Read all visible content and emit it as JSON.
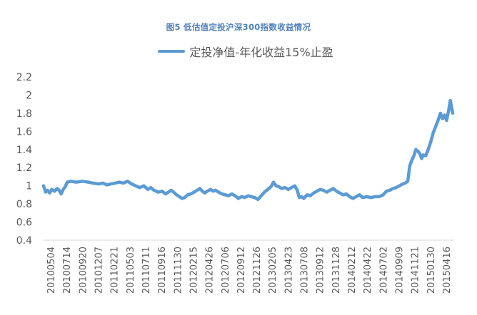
{
  "chart_data": {
    "type": "line",
    "title": "图5  低估值定投沪深300指数收益情况",
    "xlabel": "",
    "ylabel": "",
    "ylim": [
      0.4,
      2.2
    ],
    "yticks": [
      "2.2",
      "2",
      "1.8",
      "1.6",
      "1.4",
      "1.2",
      "1",
      "0.8",
      "0.6",
      "0.4"
    ],
    "grid": false,
    "legend_position": "top",
    "categories": [
      "20100504",
      "20100714",
      "20100920",
      "20101207",
      "20110221",
      "20110503",
      "20110711",
      "20110916",
      "20111130",
      "20120215",
      "20120426",
      "20120706",
      "20120912",
      "20121126",
      "20130205",
      "20130423",
      "20130708",
      "20130912",
      "20131128",
      "20140212",
      "20140422",
      "20140702",
      "20140909",
      "20141121",
      "20150130",
      "20150416"
    ],
    "series": [
      {
        "name": "定投净值-年化收益15%止盈",
        "color": "#5b9bd5",
        "points": [
          [
            0.0,
            1.0
          ],
          [
            0.005,
            0.93
          ],
          [
            0.01,
            0.95
          ],
          [
            0.015,
            0.92
          ],
          [
            0.02,
            0.96
          ],
          [
            0.027,
            0.94
          ],
          [
            0.033,
            0.97
          ],
          [
            0.038,
            0.95
          ],
          [
            0.043,
            0.91
          ],
          [
            0.048,
            0.96
          ],
          [
            0.053,
            0.99
          ],
          [
            0.058,
            1.04
          ],
          [
            0.066,
            1.05
          ],
          [
            0.08,
            1.04
          ],
          [
            0.095,
            1.05
          ],
          [
            0.11,
            1.04
          ],
          [
            0.12,
            1.03
          ],
          [
            0.135,
            1.02
          ],
          [
            0.145,
            1.03
          ],
          [
            0.155,
            1.01
          ],
          [
            0.165,
            1.02
          ],
          [
            0.175,
            1.03
          ],
          [
            0.185,
            1.04
          ],
          [
            0.195,
            1.03
          ],
          [
            0.205,
            1.05
          ],
          [
            0.215,
            1.02
          ],
          [
            0.225,
            1.0
          ],
          [
            0.235,
            0.98
          ],
          [
            0.245,
            1.0
          ],
          [
            0.255,
            0.96
          ],
          [
            0.262,
            0.98
          ],
          [
            0.27,
            0.95
          ],
          [
            0.28,
            0.93
          ],
          [
            0.29,
            0.94
          ],
          [
            0.298,
            0.91
          ],
          [
            0.305,
            0.93
          ],
          [
            0.312,
            0.95
          ],
          [
            0.318,
            0.93
          ],
          [
            0.325,
            0.9
          ],
          [
            0.332,
            0.88
          ],
          [
            0.338,
            0.86
          ],
          [
            0.345,
            0.87
          ],
          [
            0.352,
            0.9
          ],
          [
            0.36,
            0.91
          ],
          [
            0.368,
            0.93
          ],
          [
            0.375,
            0.95
          ],
          [
            0.382,
            0.97
          ],
          [
            0.388,
            0.94
          ],
          [
            0.394,
            0.92
          ],
          [
            0.4,
            0.94
          ],
          [
            0.408,
            0.96
          ],
          [
            0.414,
            0.94
          ],
          [
            0.42,
            0.95
          ],
          [
            0.428,
            0.93
          ],
          [
            0.436,
            0.91
          ],
          [
            0.444,
            0.9
          ],
          [
            0.452,
            0.89
          ],
          [
            0.46,
            0.91
          ],
          [
            0.468,
            0.89
          ],
          [
            0.476,
            0.86
          ],
          [
            0.484,
            0.88
          ],
          [
            0.492,
            0.87
          ],
          [
            0.5,
            0.89
          ],
          [
            0.508,
            0.88
          ],
          [
            0.516,
            0.87
          ],
          [
            0.524,
            0.85
          ],
          [
            0.532,
            0.89
          ],
          [
            0.54,
            0.93
          ],
          [
            0.548,
            0.96
          ],
          [
            0.556,
            0.99
          ],
          [
            0.562,
            1.04
          ],
          [
            0.568,
            1.0
          ],
          [
            0.575,
            0.99
          ],
          [
            0.582,
            0.97
          ],
          [
            0.59,
            0.98
          ],
          [
            0.598,
            0.96
          ],
          [
            0.606,
            0.98
          ],
          [
            0.614,
            1.0
          ],
          [
            0.62,
            0.95
          ],
          [
            0.625,
            0.87
          ],
          [
            0.63,
            0.88
          ],
          [
            0.636,
            0.86
          ],
          [
            0.644,
            0.9
          ],
          [
            0.652,
            0.89
          ],
          [
            0.66,
            0.92
          ],
          [
            0.668,
            0.94
          ],
          [
            0.676,
            0.96
          ],
          [
            0.684,
            0.95
          ],
          [
            0.692,
            0.93
          ],
          [
            0.7,
            0.95
          ],
          [
            0.708,
            0.97
          ],
          [
            0.716,
            0.94
          ],
          [
            0.724,
            0.92
          ],
          [
            0.732,
            0.9
          ],
          [
            0.74,
            0.91
          ],
          [
            0.748,
            0.88
          ],
          [
            0.756,
            0.86
          ],
          [
            0.764,
            0.88
          ],
          [
            0.772,
            0.9
          ],
          [
            0.78,
            0.87
          ],
          [
            0.79,
            0.88
          ],
          [
            0.8,
            0.87
          ],
          [
            0.81,
            0.88
          ],
          [
            0.82,
            0.88
          ],
          [
            0.83,
            0.9
          ],
          [
            0.838,
            0.94
          ],
          [
            0.846,
            0.95
          ],
          [
            0.854,
            0.97
          ],
          [
            0.862,
            0.98
          ],
          [
            0.87,
            1.0
          ],
          [
            0.878,
            1.02
          ],
          [
            0.884,
            1.03
          ],
          [
            0.89,
            1.05
          ],
          [
            0.895,
            1.22
          ],
          [
            0.9,
            1.28
          ],
          [
            0.905,
            1.33
          ],
          [
            0.91,
            1.4
          ],
          [
            0.915,
            1.38
          ],
          [
            0.92,
            1.35
          ],
          [
            0.924,
            1.3
          ],
          [
            0.928,
            1.34
          ],
          [
            0.934,
            1.33
          ],
          [
            0.94,
            1.4
          ],
          [
            0.946,
            1.48
          ],
          [
            0.952,
            1.58
          ],
          [
            0.958,
            1.65
          ],
          [
            0.964,
            1.72
          ],
          [
            0.97,
            1.8
          ],
          [
            0.975,
            1.74
          ],
          [
            0.98,
            1.78
          ],
          [
            0.985,
            1.72
          ],
          [
            0.99,
            1.83
          ],
          [
            0.994,
            1.94
          ],
          [
            1.0,
            1.8
          ]
        ]
      }
    ]
  },
  "legend": {
    "label": "定投净值-年化收益15%止盈"
  }
}
